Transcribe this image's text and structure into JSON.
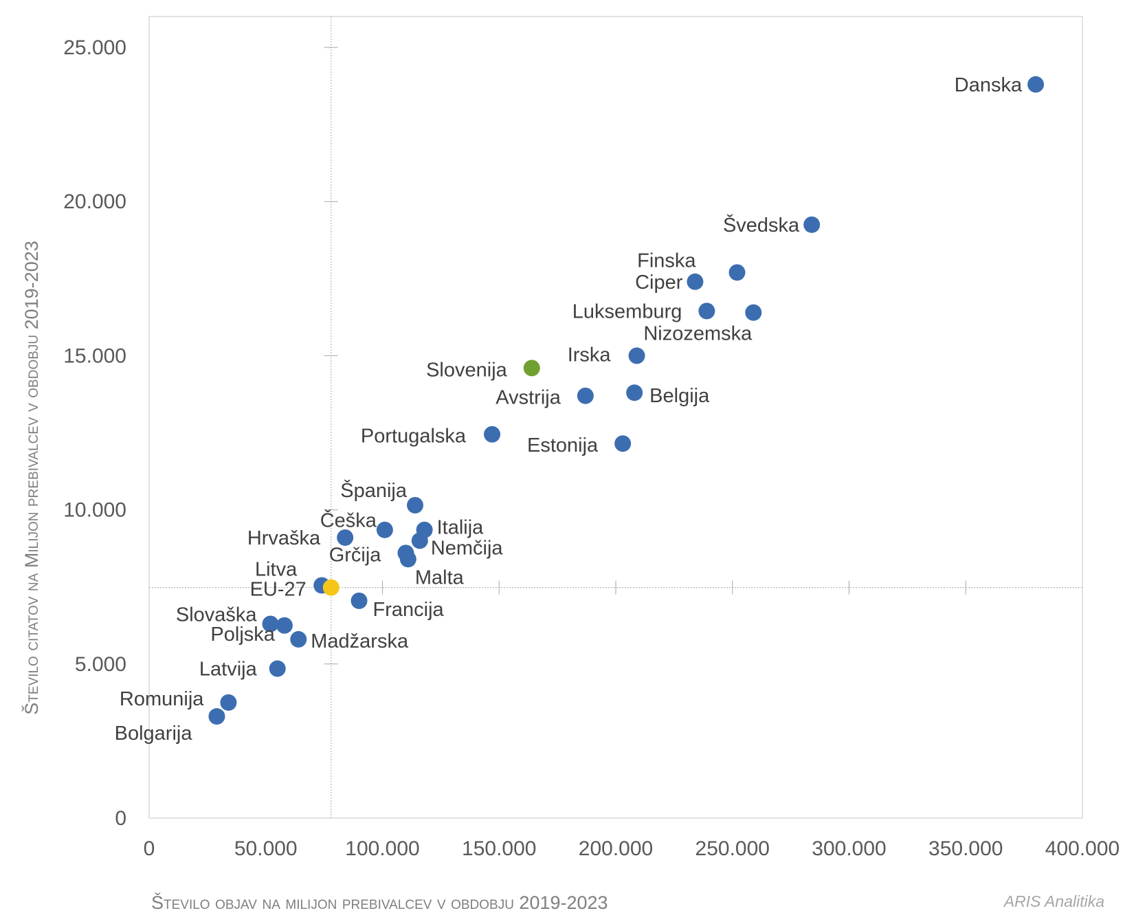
{
  "chart_data": {
    "type": "scatter",
    "xlabel": "Število objav na milijon prebivalcev v obdobju 2019-2023",
    "ylabel": "Število citatov na Milijon prebivalcev v obdobju 2019-2023",
    "xlim": [
      0,
      400000
    ],
    "ylim": [
      0,
      25000
    ],
    "xticks": [
      0,
      50000,
      100000,
      150000,
      200000,
      250000,
      300000,
      350000,
      400000
    ],
    "xtick_labels": [
      "0",
      "50.000",
      "100.000",
      "150.000",
      "200.000",
      "250.000",
      "300.000",
      "350.000",
      "400.000"
    ],
    "yticks": [
      0,
      5000,
      10000,
      15000,
      20000,
      25000
    ],
    "ytick_labels": [
      "0",
      "5.000",
      "10.000",
      "15.000",
      "20.000",
      "25.000"
    ],
    "reference_lines": {
      "x": 78000,
      "y": 7480
    },
    "colors": {
      "default": "#3c6db0",
      "slovenia": "#70a030",
      "eu": "#f5c518",
      "slovenia_label": "#70a030",
      "eu_label": "#f5c518"
    },
    "points": [
      {
        "label": "Danska",
        "x": 380000,
        "y": 23800,
        "color": "default"
      },
      {
        "label": "Švedska",
        "x": 284000,
        "y": 19250,
        "color": "default"
      },
      {
        "label": "Finska",
        "x": 252000,
        "y": 17700,
        "color": "default"
      },
      {
        "label": "Ciper",
        "x": 234000,
        "y": 17400,
        "color": "default"
      },
      {
        "label": "Luksemburg",
        "x": 239000,
        "y": 16450,
        "color": "default"
      },
      {
        "label": "Nizozemska",
        "x": 259000,
        "y": 16400,
        "color": "default"
      },
      {
        "label": "Irska",
        "x": 209000,
        "y": 15000,
        "color": "default"
      },
      {
        "label": "Slovenija",
        "x": 164000,
        "y": 14600,
        "color": "slovenia"
      },
      {
        "label": "Avstrija",
        "x": 187000,
        "y": 13700,
        "color": "default"
      },
      {
        "label": "Belgija",
        "x": 208000,
        "y": 13800,
        "color": "default"
      },
      {
        "label": "Portugalska",
        "x": 147000,
        "y": 12450,
        "color": "default"
      },
      {
        "label": "Estonija",
        "x": 203000,
        "y": 12150,
        "color": "default"
      },
      {
        "label": "Španija",
        "x": 114000,
        "y": 10150,
        "color": "default"
      },
      {
        "label": "Češka",
        "x": 101000,
        "y": 9350,
        "color": "default"
      },
      {
        "label": "Italija",
        "x": 118000,
        "y": 9350,
        "color": "default"
      },
      {
        "label": "Hrvaška",
        "x": 84000,
        "y": 9100,
        "color": "default"
      },
      {
        "label": "Nemčija",
        "x": 116000,
        "y": 9000,
        "color": "default"
      },
      {
        "label": "Grčija",
        "x": 110000,
        "y": 8600,
        "color": "default"
      },
      {
        "label": "Malta",
        "x": 111000,
        "y": 8400,
        "color": "default"
      },
      {
        "label": "Litva",
        "x": 74000,
        "y": 7550,
        "color": "default"
      },
      {
        "label": "EU-27",
        "x": 78000,
        "y": 7480,
        "color": "eu"
      },
      {
        "label": "Francija",
        "x": 90000,
        "y": 7050,
        "color": "default"
      },
      {
        "label": "Slovaška",
        "x": 52000,
        "y": 6300,
        "color": "default"
      },
      {
        "label": "Poljska",
        "x": 58000,
        "y": 6250,
        "color": "default"
      },
      {
        "label": "Madžarska",
        "x": 64000,
        "y": 5800,
        "color": "default"
      },
      {
        "label": "Latvija",
        "x": 55000,
        "y": 4850,
        "color": "default"
      },
      {
        "label": "Romunija",
        "x": 34000,
        "y": 3750,
        "color": "default"
      },
      {
        "label": "Bolgarija",
        "x": 29000,
        "y": 3300,
        "color": "default"
      }
    ]
  },
  "credit": "ARIS Analitika"
}
